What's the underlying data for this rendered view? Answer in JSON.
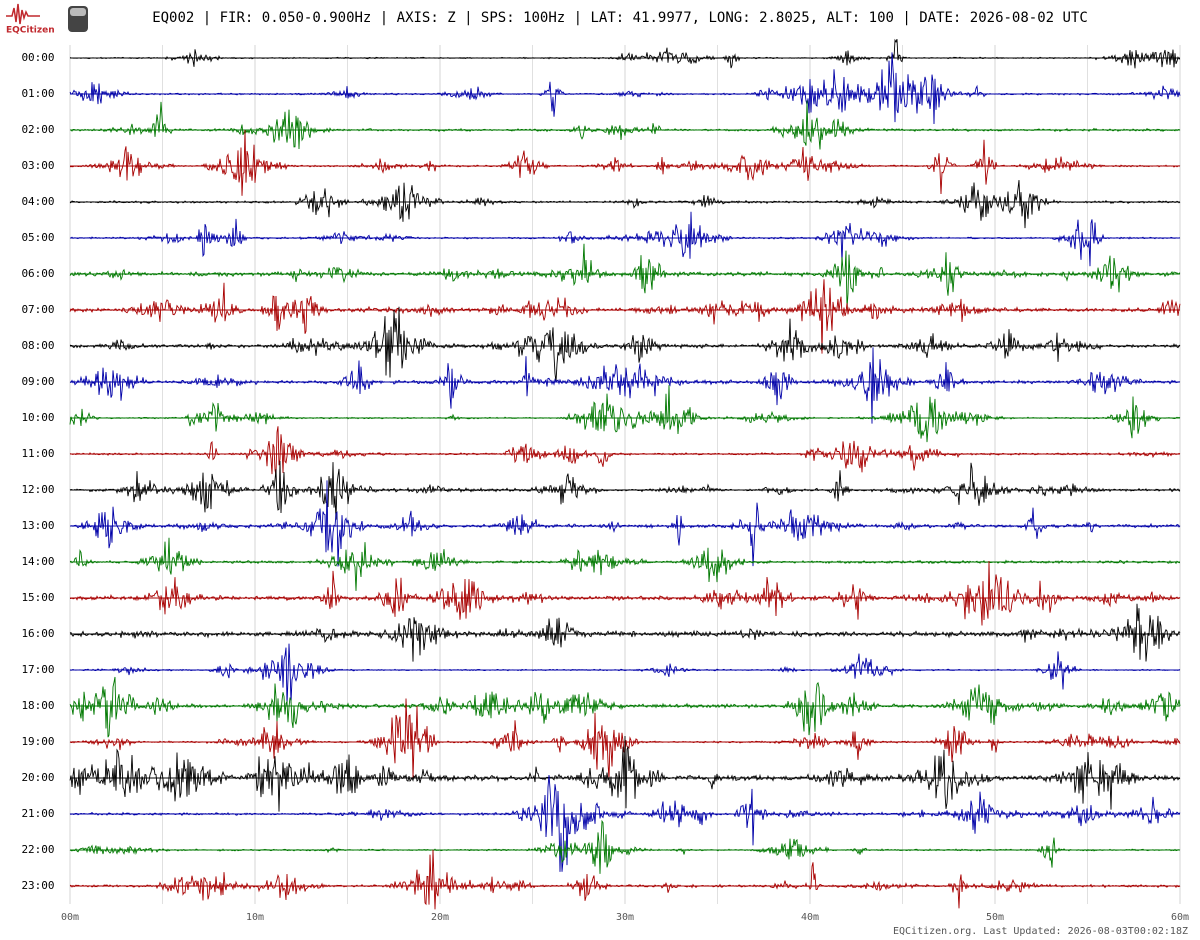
{
  "chart_data": {
    "type": "helicorder",
    "logo": "EQCitizen",
    "title": "EQ002 | FIR: 0.050-0.900Hz | AXIS: Z | SPS: 100Hz | LAT: 41.9977, LONG: 2.8025, ALT: 100 | DATE: 2026-08-02 UTC",
    "rows": [
      "00:00",
      "01:00",
      "02:00",
      "03:00",
      "04:00",
      "05:00",
      "06:00",
      "07:00",
      "08:00",
      "09:00",
      "10:00",
      "11:00",
      "12:00",
      "13:00",
      "14:00",
      "15:00",
      "16:00",
      "17:00",
      "18:00",
      "19:00",
      "20:00",
      "21:00",
      "22:00",
      "23:00"
    ],
    "colors": [
      "#000000",
      "#0000a8",
      "#007800",
      "#a80000"
    ],
    "xlim": [
      0,
      60
    ],
    "xticks": [
      {
        "value": 0,
        "label": "00m"
      },
      {
        "value": 10,
        "label": "10m"
      },
      {
        "value": 20,
        "label": "20m"
      },
      {
        "value": 30,
        "label": "30m"
      },
      {
        "value": 40,
        "label": "40m"
      },
      {
        "value": 50,
        "label": "50m"
      },
      {
        "value": 60,
        "label": "60m"
      }
    ],
    "minor_xticks": [
      5,
      15,
      25,
      35,
      45,
      55
    ],
    "grid": true,
    "footer": "EQCitizen.org. Last Updated: 2026-08-03T00:02:18Z"
  }
}
